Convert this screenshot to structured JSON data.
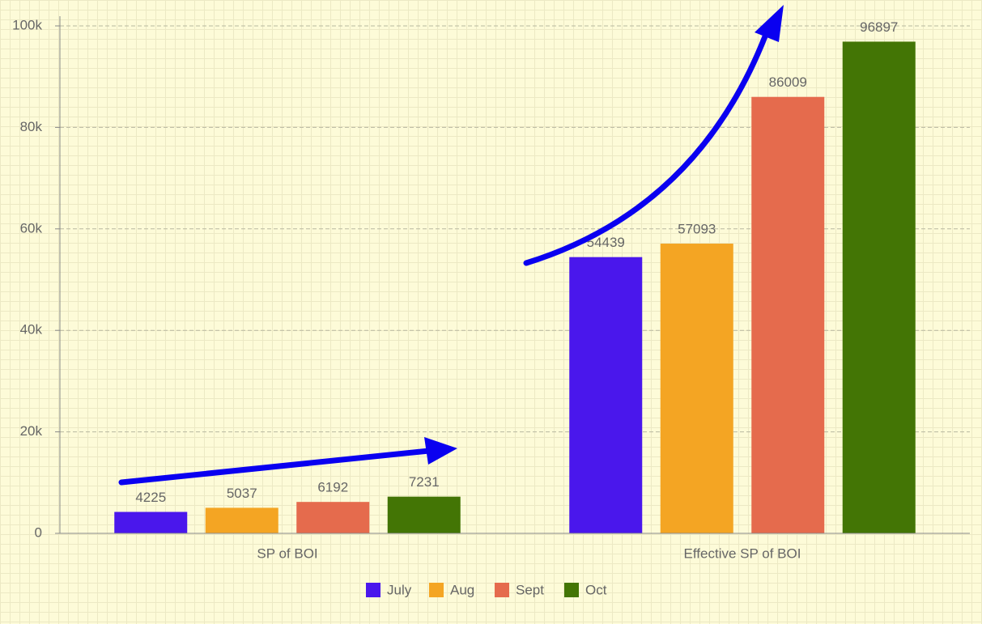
{
  "chart_data": {
    "type": "bar",
    "categories": [
      "SP of BOI",
      "Effective SP of BOI"
    ],
    "series": [
      {
        "name": "July",
        "color": "#4a17ec",
        "values": [
          4225,
          54439
        ]
      },
      {
        "name": "Aug",
        "color": "#f4a523",
        "values": [
          5037,
          57093
        ]
      },
      {
        "name": "Sept",
        "color": "#e56b4d",
        "values": [
          6192,
          86009
        ]
      },
      {
        "name": "Oct",
        "color": "#437505",
        "values": [
          7231,
          96897
        ]
      }
    ],
    "ylim": [
      0,
      100000
    ],
    "yticks": [
      0,
      {
        "value": 20000,
        "label": "20k"
      },
      {
        "value": 40000,
        "label": "40k"
      },
      {
        "value": 60000,
        "label": "60k"
      },
      {
        "value": 80000,
        "label": "80k"
      },
      {
        "value": 100000,
        "label": "100k"
      }
    ],
    "grid": true,
    "legend": "bottom"
  }
}
